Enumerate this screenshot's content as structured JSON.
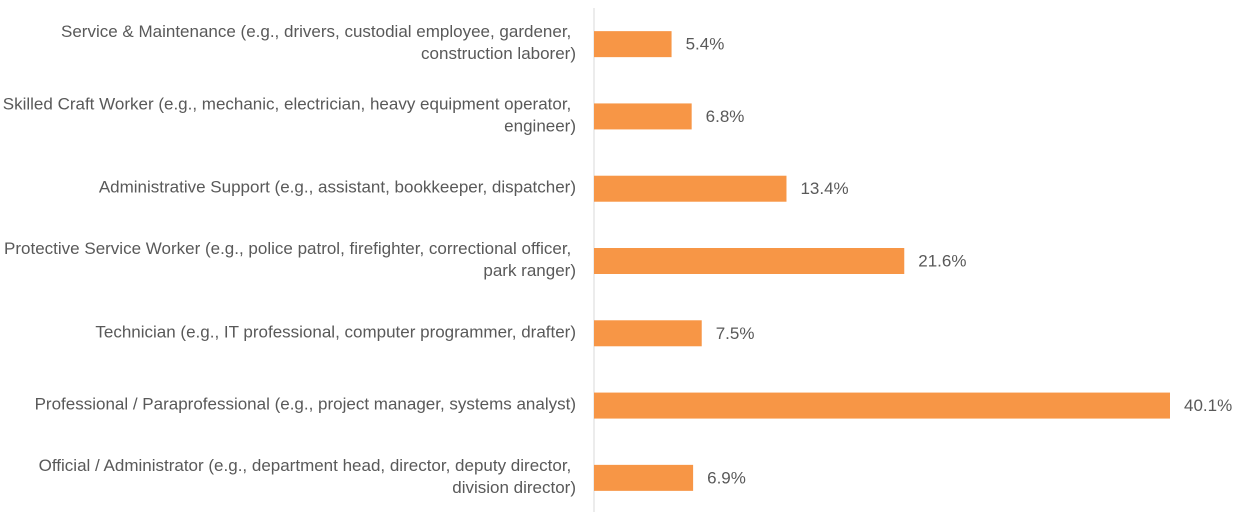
{
  "chart_data": {
    "type": "bar",
    "orientation": "horizontal",
    "categories": [
      "Service & Maintenance (e.g., drivers, custodial employee, gardener, construction laborer)",
      "Skilled Craft Worker (e.g., mechanic, electrician, heavy equipment operator, engineer)",
      "Administrative Support (e.g., assistant, bookkeeper, dispatcher)",
      "Protective Service Worker (e.g., police patrol, firefighter, correctional officer, park ranger)",
      "Technician (e.g., IT professional, computer programmer, drafter)",
      "Professional / Paraprofessional (e.g., project manager, systems analyst)",
      "Official / Administrator (e.g., department head, director, deputy director, division director)"
    ],
    "values": [
      5.4,
      6.8,
      13.4,
      21.6,
      7.5,
      40.1,
      6.9
    ],
    "value_labels": [
      "5.4%",
      "6.8%",
      "13.4%",
      "21.6%",
      "7.5%",
      "40.1%",
      "6.9%"
    ],
    "color": "#f79646"
  }
}
